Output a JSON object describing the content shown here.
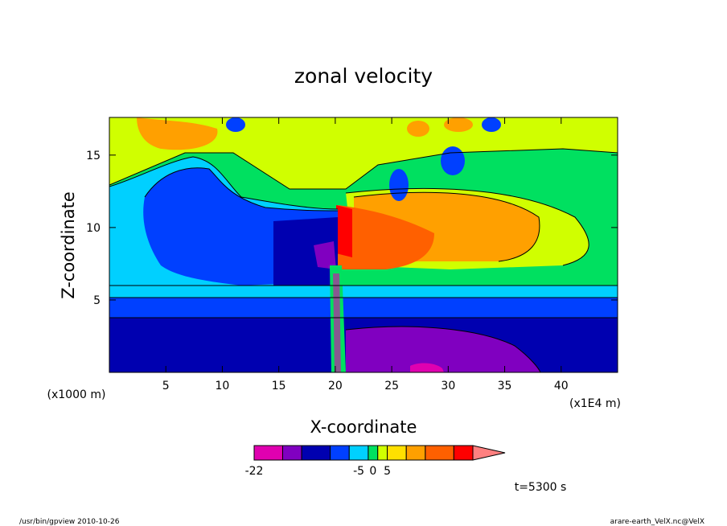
{
  "chart_data": {
    "type": "heatmap",
    "title": "zonal velocity",
    "xlabel": "X-coordinate",
    "ylabel": "Z-coordinate",
    "x_unit_left": "(x1000 m)",
    "x_unit_right": "(x1E4 m)",
    "xlim": [
      0,
      45
    ],
    "ylim": [
      0,
      17.6
    ],
    "x_ticks": [
      5,
      10,
      15,
      20,
      25,
      30,
      35,
      40
    ],
    "y_ticks": [
      5,
      10,
      15
    ],
    "time_label": "t=5300 s",
    "colorbar": {
      "colors": [
        "#e000b0",
        "#8000c0",
        "#0000b0",
        "#0040ff",
        "#00d0ff",
        "#00e060",
        "#d0ff00",
        "#ffe000",
        "#ffa000",
        "#ff6000",
        "#ff0000",
        "#ff8080"
      ],
      "labels": [
        {
          "text": "-22",
          "pos": 0
        },
        {
          "text": "-5",
          "pos": 4.5
        },
        {
          "text": "0",
          "pos": 5.5
        },
        {
          "text": "5",
          "pos": 7
        }
      ]
    }
  },
  "footer": {
    "left": "/usr/bin/gpview   2010-10-26",
    "right": "arare-earth_VelX.nc@VelX"
  }
}
